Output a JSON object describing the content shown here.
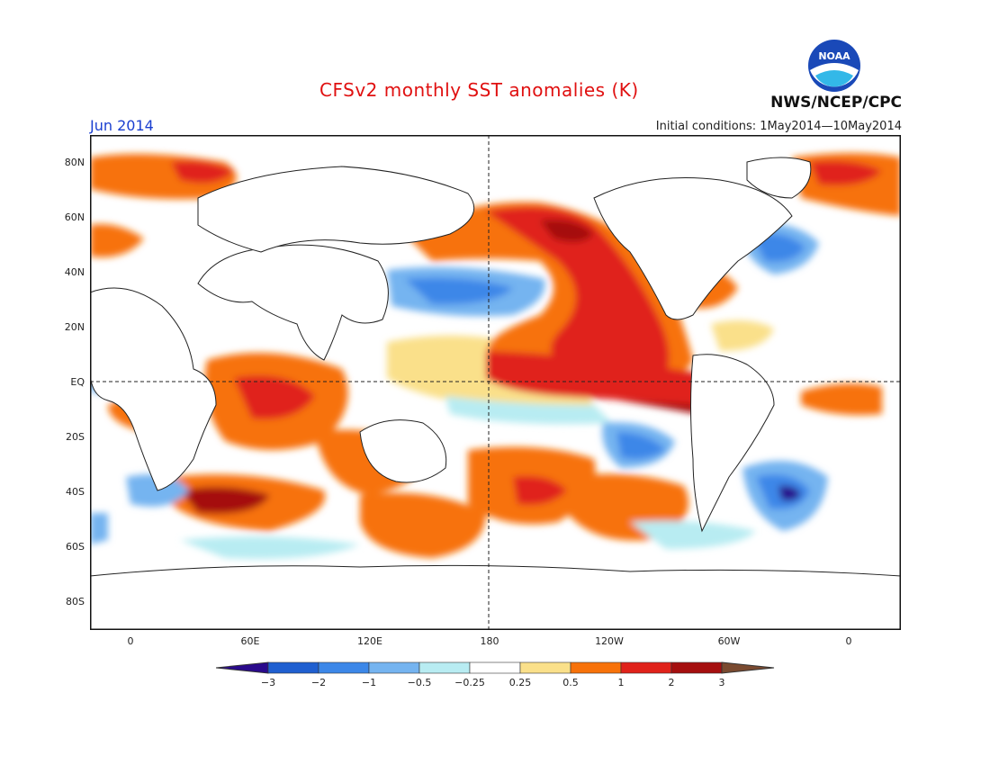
{
  "header": {
    "title": "CFSv2 monthly SST anomalies (K)",
    "agency": "NWS/NCEP/CPC",
    "logo_text": "NOAA",
    "month": "Jun 2014",
    "initial_conditions": "Initial conditions: 1May2014—10May2014"
  },
  "axes": {
    "lat_labels": [
      "80N",
      "60N",
      "40N",
      "20N",
      "EQ",
      "20S",
      "40S",
      "60S",
      "80S"
    ],
    "lon_labels": [
      "0",
      "60E",
      "120E",
      "180",
      "120W",
      "60W",
      "0"
    ]
  },
  "colorbar": {
    "ticks": [
      "−3",
      "−2",
      "−1",
      "−0.5",
      "−0.25",
      "0.25",
      "0.5",
      "1",
      "2",
      "3"
    ],
    "colors": [
      "#2a0a8c",
      "#1f5fd0",
      "#3c87e8",
      "#75b4f0",
      "#b8ecf2",
      "#ffffff",
      "#fae08a",
      "#f7720a",
      "#e0221a",
      "#a50f0f",
      "#7a4a30"
    ]
  }
}
